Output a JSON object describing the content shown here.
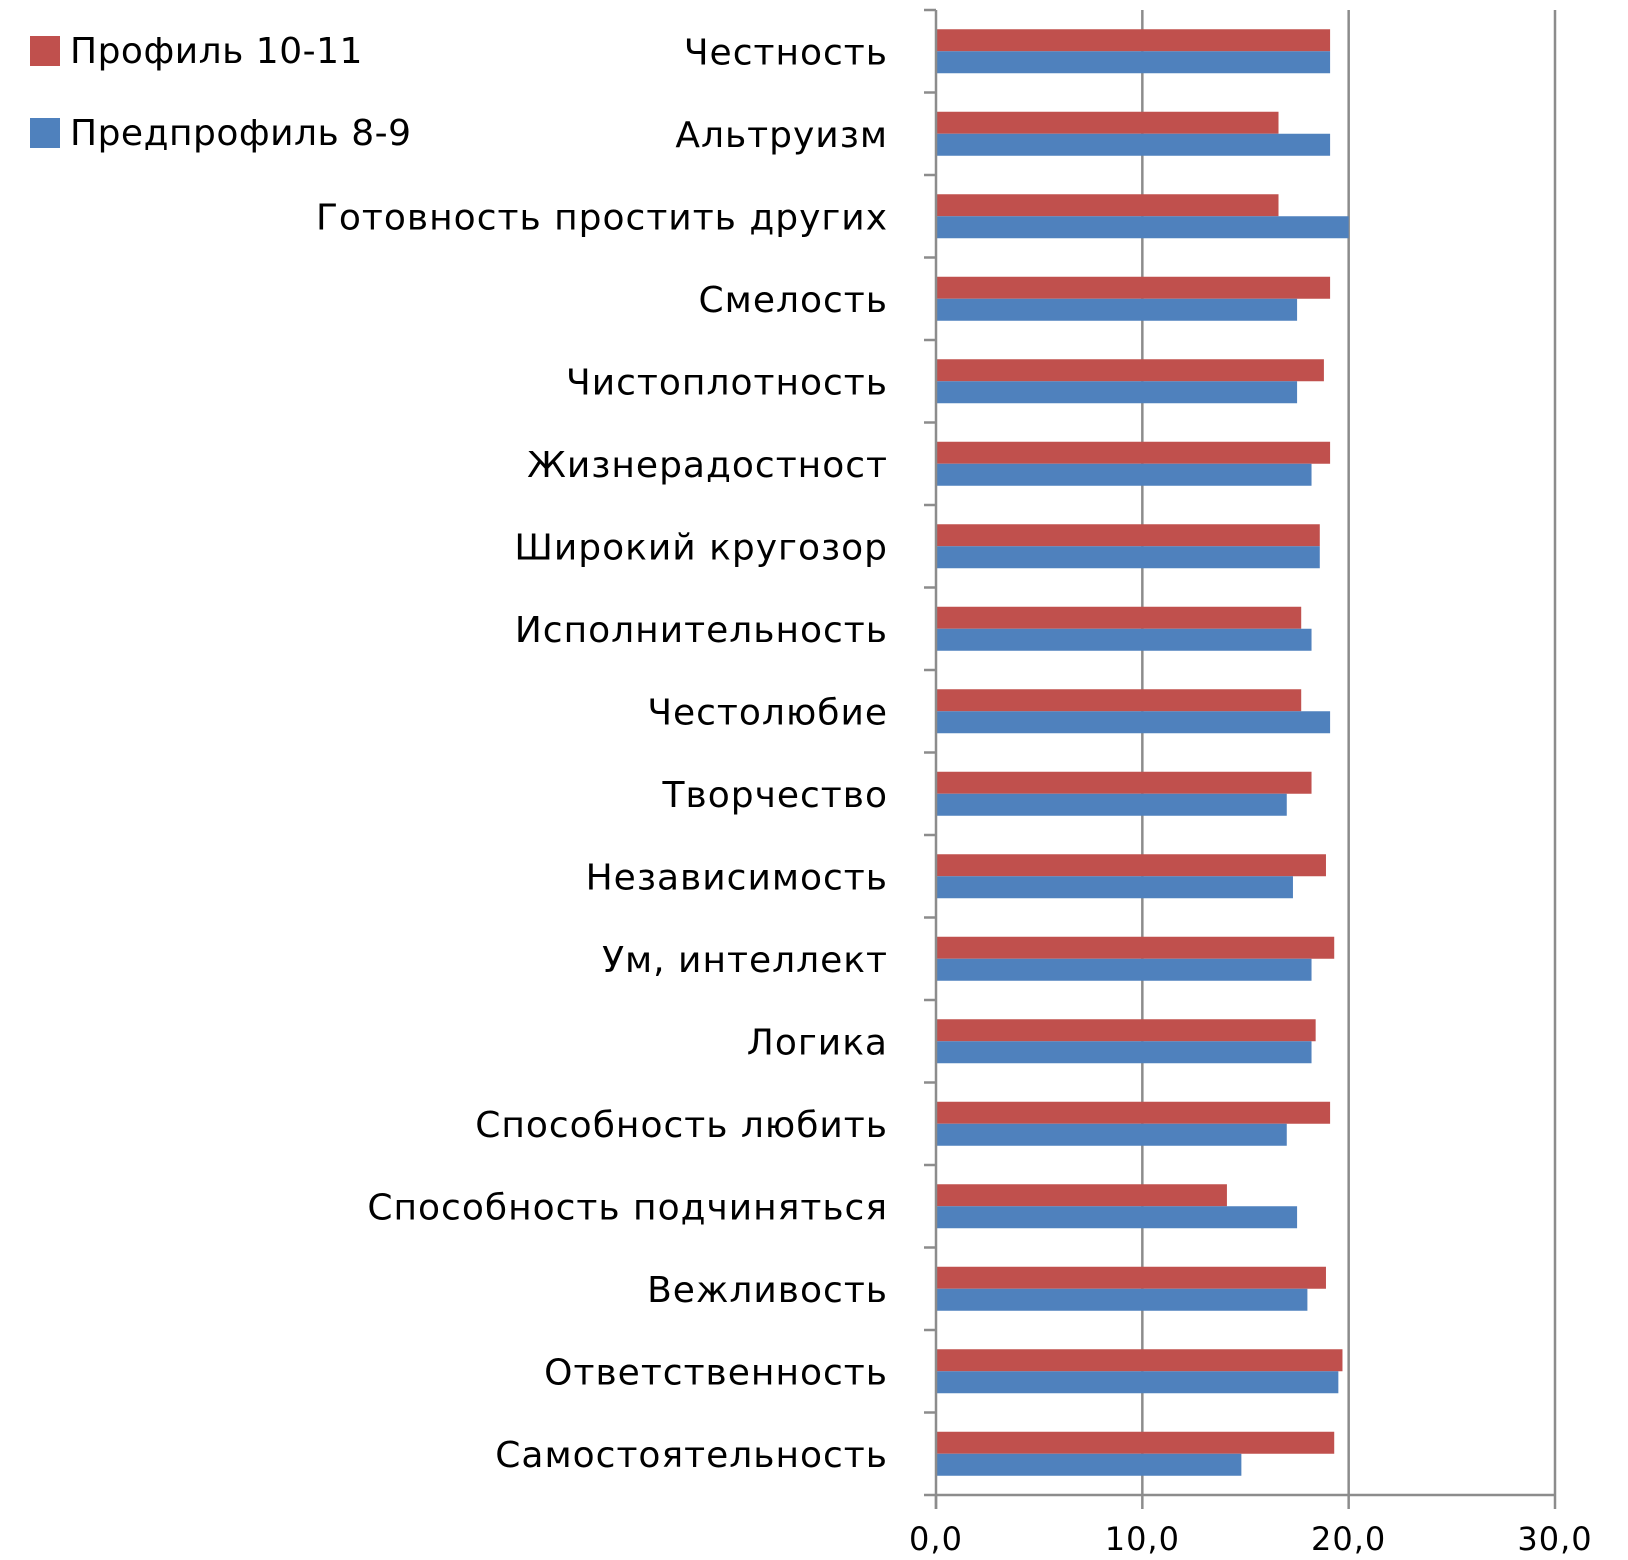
{
  "chart_data": {
    "type": "bar",
    "orientation": "horizontal",
    "categories": [
      "Честность",
      "Альтруизм",
      "Готовность простить других",
      "Смелость",
      "Чистоплотность",
      "Жизнерадостност",
      "Широкий кругозор",
      "Исполнительность",
      "Честолюбие",
      "Творчество",
      "Независимость",
      "Ум, интеллект",
      "Логика",
      "Способность любить",
      "Способность подчиняться",
      "Вежливость",
      "Ответственность",
      "Самостоятельность"
    ],
    "series": [
      {
        "name": "Профиль 10-11",
        "color": "#c0504d",
        "values": [
          19.1,
          16.6,
          16.6,
          19.1,
          18.8,
          19.1,
          18.6,
          17.7,
          17.7,
          18.2,
          18.9,
          19.3,
          18.4,
          19.1,
          14.1,
          18.9,
          19.7,
          19.3
        ]
      },
      {
        "name": "Предпрофиль 8-9",
        "color": "#4f81bd",
        "values": [
          19.1,
          19.1,
          20.0,
          17.5,
          17.5,
          18.2,
          18.6,
          18.2,
          19.1,
          17.0,
          17.3,
          18.2,
          18.2,
          17.0,
          17.5,
          18.0,
          19.5,
          14.8
        ]
      }
    ],
    "xlim": [
      0,
      30
    ],
    "ticks": [
      "0,0",
      "10,0",
      "20,0",
      "30,0"
    ],
    "tick_values": [
      0,
      10,
      20,
      30
    ],
    "grid": true,
    "legend_position": "top-left",
    "title": "",
    "xlabel": "",
    "ylabel": ""
  }
}
